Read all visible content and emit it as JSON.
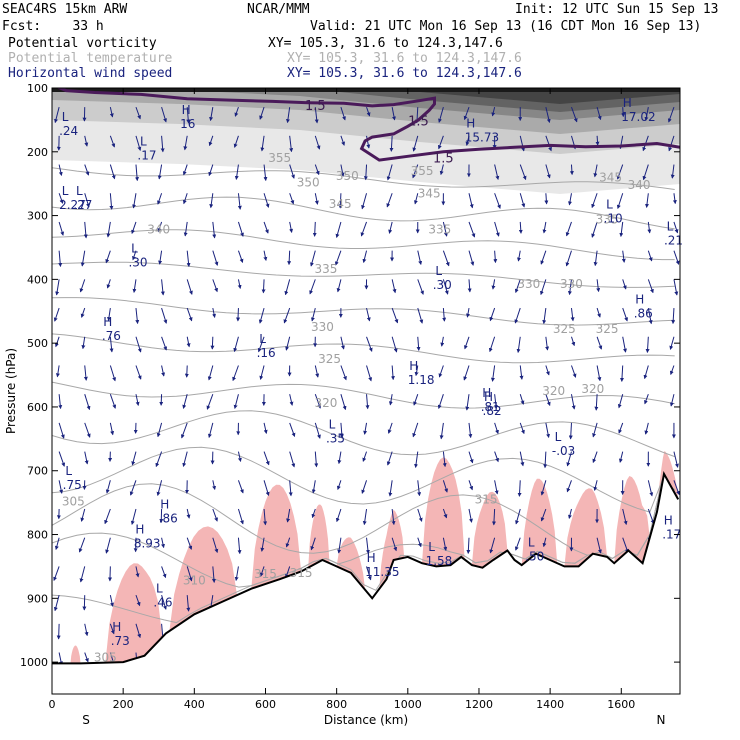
{
  "header": {
    "model": "SEAC4RS 15km ARW",
    "org": "NCAR/MMM",
    "init": "Init: 12 UTC Sun 15 Sep 13",
    "fcst": "Fcst:    33 h",
    "valid": "Valid: 21 UTC Mon 16 Sep 13 (16 CDT Mon 16 Sep 13)",
    "fields": [
      {
        "name": "Potential vorticity",
        "xy": "XY= 105.3, 31.6 to 124.3,147.6",
        "color": "#000000"
      },
      {
        "name": "Potential temperature",
        "xy": "XY= 105.3, 31.6 to 124.3,147.6",
        "color": "#b0b0b0"
      },
      {
        "name": "Horizontal wind speed",
        "xy": "XY= 105.3, 31.6 to 124.3,147.6",
        "color": "#1a237e"
      }
    ]
  },
  "chart_data": {
    "type": "cross-section",
    "xlabel": "Distance (km)",
    "ylabel": "Pressure (hPa)",
    "xlim": [
      0,
      1765
    ],
    "ylim": [
      1050,
      100
    ],
    "x_ticks": [
      0,
      200,
      400,
      600,
      800,
      1000,
      1200,
      1400,
      1600
    ],
    "y_ticks": [
      100,
      200,
      300,
      400,
      500,
      600,
      700,
      800,
      900,
      1000
    ],
    "x_end_labels": {
      "left": "S",
      "right": "N"
    },
    "colors": {
      "terrain": "#000000",
      "pv_1_5": "#4a1a5a",
      "theta": "#a8a8a8",
      "wind": "#1a237e",
      "moist": "#f4b6b6"
    },
    "terrain": [
      [
        0,
        1002
      ],
      [
        80,
        1002
      ],
      [
        200,
        1000
      ],
      [
        260,
        990
      ],
      [
        320,
        955
      ],
      [
        400,
        925
      ],
      [
        480,
        905
      ],
      [
        560,
        885
      ],
      [
        640,
        870
      ],
      [
        700,
        858
      ],
      [
        760,
        840
      ],
      [
        800,
        850
      ],
      [
        840,
        860
      ],
      [
        870,
        880
      ],
      [
        900,
        900
      ],
      [
        940,
        870
      ],
      [
        960,
        840
      ],
      [
        1000,
        835
      ],
      [
        1040,
        845
      ],
      [
        1080,
        850
      ],
      [
        1120,
        848
      ],
      [
        1150,
        835
      ],
      [
        1180,
        848
      ],
      [
        1210,
        852
      ],
      [
        1240,
        840
      ],
      [
        1280,
        825
      ],
      [
        1300,
        840
      ],
      [
        1320,
        848
      ],
      [
        1360,
        830
      ],
      [
        1400,
        840
      ],
      [
        1440,
        850
      ],
      [
        1480,
        850
      ],
      [
        1520,
        830
      ],
      [
        1560,
        835
      ],
      [
        1580,
        845
      ],
      [
        1620,
        825
      ],
      [
        1660,
        845
      ],
      [
        1700,
        765
      ],
      [
        1720,
        705
      ],
      [
        1760,
        745
      ]
    ],
    "pv_contour_label": "1.5",
    "pv_1_5_upper": [
      [
        10,
        97
      ],
      [
        40,
        104
      ],
      [
        120,
        107
      ],
      [
        250,
        110
      ],
      [
        380,
        117
      ],
      [
        500,
        119
      ],
      [
        620,
        121
      ],
      [
        720,
        123
      ],
      [
        820,
        124
      ],
      [
        900,
        128
      ],
      [
        960,
        126
      ],
      [
        1030,
        120
      ],
      [
        1075,
        116
      ],
      [
        1075,
        125
      ],
      [
        1060,
        135
      ],
      [
        1030,
        150
      ],
      [
        1000,
        160
      ],
      [
        960,
        172
      ],
      [
        900,
        177
      ],
      [
        880,
        183
      ],
      [
        870,
        195
      ],
      [
        920,
        213
      ],
      [
        1000,
        207
      ],
      [
        1100,
        200
      ],
      [
        1200,
        196
      ],
      [
        1300,
        193
      ],
      [
        1400,
        190
      ],
      [
        1500,
        192
      ],
      [
        1600,
        191
      ],
      [
        1700,
        187
      ],
      [
        1765,
        193
      ]
    ],
    "theta_labels": [
      {
        "x": 810,
        "p": 282,
        "t": "345"
      },
      {
        "x": 300,
        "p": 322,
        "t": "340"
      },
      {
        "x": 1090,
        "p": 322,
        "t": "335"
      },
      {
        "x": 1560,
        "p": 306,
        "t": "335"
      },
      {
        "x": 770,
        "p": 384,
        "t": "335"
      },
      {
        "x": 1340,
        "p": 407,
        "t": "330"
      },
      {
        "x": 1460,
        "p": 407,
        "t": "330"
      },
      {
        "x": 760,
        "p": 475,
        "t": "330"
      },
      {
        "x": 1440,
        "p": 478,
        "t": "325"
      },
      {
        "x": 1560,
        "p": 478,
        "t": "325"
      },
      {
        "x": 780,
        "p": 525,
        "t": "325"
      },
      {
        "x": 1410,
        "p": 575,
        "t": "320"
      },
      {
        "x": 1520,
        "p": 572,
        "t": "320"
      },
      {
        "x": 770,
        "p": 594,
        "t": "320"
      },
      {
        "x": 720,
        "p": 248,
        "t": "350"
      },
      {
        "x": 830,
        "p": 238,
        "t": "350"
      },
      {
        "x": 1650,
        "p": 252,
        "t": "340"
      },
      {
        "x": 1570,
        "p": 240,
        "t": "345"
      },
      {
        "x": 640,
        "p": 210,
        "t": "355"
      },
      {
        "x": 1040,
        "p": 230,
        "t": "355"
      },
      {
        "x": 1060,
        "p": 265,
        "t": "345"
      },
      {
        "x": 60,
        "p": 748,
        "t": "305"
      },
      {
        "x": 150,
        "p": 993,
        "t": "305"
      },
      {
        "x": 1220,
        "p": 745,
        "t": "315"
      },
      {
        "x": 400,
        "p": 872,
        "t": "310"
      },
      {
        "x": 600,
        "p": 862,
        "t": "315"
      },
      {
        "x": 700,
        "p": 860,
        "t": "315"
      }
    ],
    "pressure_extrema": [
      {
        "kind": "H",
        "x": 360,
        "p": 152,
        "value": "16"
      },
      {
        "kind": "L",
        "x": 20,
        "p": 163,
        "value": ".24"
      },
      {
        "kind": "L",
        "x": 240,
        "p": 201,
        "value": ".17"
      },
      {
        "kind": "H",
        "x": 1160,
        "p": 173,
        "value": "15.73"
      },
      {
        "kind": "H",
        "x": 1600,
        "p": 141,
        "value": "17.02"
      },
      {
        "kind": "L",
        "x": 20,
        "p": 279,
        "value": "2.27"
      },
      {
        "kind": "L",
        "x": 60,
        "p": 279,
        "value": ".27"
      },
      {
        "kind": "L",
        "x": 1550,
        "p": 300,
        "value": ".10"
      },
      {
        "kind": "L",
        "x": 1720,
        "p": 334,
        "value": ".21"
      },
      {
        "kind": "L",
        "x": 215,
        "p": 369,
        "value": ".30"
      },
      {
        "kind": "L",
        "x": 1070,
        "p": 404,
        "value": ".30"
      },
      {
        "kind": "H",
        "x": 1635,
        "p": 449,
        "value": ".86"
      },
      {
        "kind": "H",
        "x": 140,
        "p": 484,
        "value": ".76"
      },
      {
        "kind": "L",
        "x": 575,
        "p": 511,
        "value": ".16"
      },
      {
        "kind": "H",
        "x": 1000,
        "p": 553,
        "value": "1.18"
      },
      {
        "kind": "H",
        "x": 1205,
        "p": 595,
        "value": ".81"
      },
      {
        "kind": "H",
        "x": 1210,
        "p": 602,
        "value": ".82"
      },
      {
        "kind": "L",
        "x": 770,
        "p": 645,
        "value": ".35"
      },
      {
        "kind": "L",
        "x": 1405,
        "p": 664,
        "value": "-.03"
      },
      {
        "kind": "H",
        "x": 300,
        "p": 770,
        "value": ".86"
      },
      {
        "kind": "H",
        "x": 230,
        "p": 809,
        "value": "8.93"
      },
      {
        "kind": "H",
        "x": 880,
        "p": 854,
        "value": "11.35"
      },
      {
        "kind": "L",
        "x": 1050,
        "p": 837,
        "value": "1.58"
      },
      {
        "kind": "L",
        "x": 1330,
        "p": 830,
        "value": ".50"
      },
      {
        "kind": "H",
        "x": 1715,
        "p": 795,
        "value": ".17"
      },
      {
        "kind": "L",
        "x": 285,
        "p": 902,
        "value": ".46"
      },
      {
        "kind": "H",
        "x": 165,
        "p": 962,
        "value": ".73"
      },
      {
        "kind": "L",
        "x": 30,
        "p": 718,
        "value": ".75"
      }
    ]
  }
}
